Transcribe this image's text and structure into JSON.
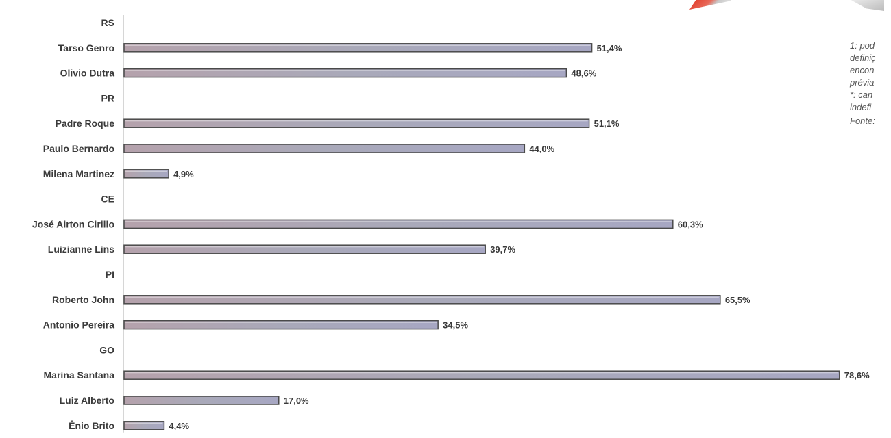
{
  "chart_data": {
    "type": "bar",
    "orientation": "horizontal",
    "unit": "%",
    "xlim": [
      0,
      80
    ],
    "grid": false,
    "rows": [
      {
        "kind": "group",
        "label": "RS"
      },
      {
        "kind": "bar",
        "label": "Tarso Genro",
        "value": 51.4,
        "value_label": "51,4%"
      },
      {
        "kind": "bar",
        "label": "Olivio Dutra",
        "value": 48.6,
        "value_label": "48,6%"
      },
      {
        "kind": "group",
        "label": "PR"
      },
      {
        "kind": "bar",
        "label": "Padre Roque",
        "value": 51.1,
        "value_label": "51,1%"
      },
      {
        "kind": "bar",
        "label": "Paulo Bernardo",
        "value": 44.0,
        "value_label": "44,0%"
      },
      {
        "kind": "bar",
        "label": "Milena Martinez",
        "value": 4.9,
        "value_label": "4,9%"
      },
      {
        "kind": "group",
        "label": "CE"
      },
      {
        "kind": "bar",
        "label": "José Airton Cirillo",
        "value": 60.3,
        "value_label": "60,3%"
      },
      {
        "kind": "bar",
        "label": "Luizianne Lins",
        "value": 39.7,
        "value_label": "39,7%"
      },
      {
        "kind": "group",
        "label": "PI"
      },
      {
        "kind": "bar",
        "label": "Roberto John",
        "value": 65.5,
        "value_label": "65,5%"
      },
      {
        "kind": "bar",
        "label": "Antonio Pereira",
        "value": 34.5,
        "value_label": "34,5%"
      },
      {
        "kind": "group",
        "label": "GO"
      },
      {
        "kind": "bar",
        "label": "Marina Santana",
        "value": 78.6,
        "value_label": "78,6%"
      },
      {
        "kind": "bar",
        "label": "Luiz Alberto",
        "value": 17.0,
        "value_label": "17,0%"
      },
      {
        "kind": "bar",
        "label": "Ênio Brito",
        "value": 4.4,
        "value_label": "4,4%"
      }
    ]
  },
  "notes": {
    "lines": [
      "1: pod",
      "definiç",
      "encon",
      "prévia",
      "*: can",
      "indefi"
    ],
    "source": "Fonte:"
  },
  "colors": {
    "bar_start": "#b5a2ac",
    "bar_mid": "#a9a9b9",
    "bar_end": "#a7a7c3",
    "bar_border": "#4a4a4a",
    "text": "#3a3a3a",
    "axis_line": "#c8c8c8"
  }
}
